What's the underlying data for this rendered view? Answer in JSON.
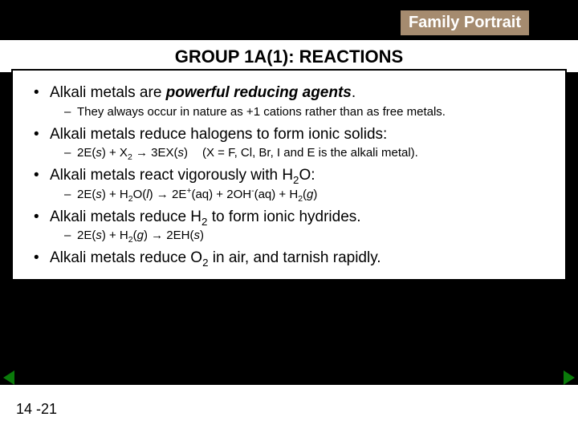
{
  "badge": {
    "text": "Family Portrait",
    "bg": "#a58b6f",
    "fg": "#ffffff"
  },
  "heading": "GROUP 1A(1): REACTIONS",
  "bullets": {
    "b1_pre": "Alkali metals are ",
    "b1_em": "powerful reducing agents",
    "b1_post": ".",
    "s1": "They always occur in nature as +1 cations rather than as free metals.",
    "b2": "Alkali metals reduce halogens to form ionic solids:",
    "s2a": "2E(",
    "s2b": ") + X",
    "s2c": " → 3EX(",
    "s2d": ")",
    "s2note": "(X = F, Cl, Br, I and E is the alkali metal).",
    "b3_pre": "Alkali metals react vigorously with H",
    "b3_post": "O:",
    "s3a": "2E(",
    "s3b": ") + H",
    "s3c": "O(",
    "s3d": ") → 2E",
    "s3e": "(aq) + 2OH",
    "s3f": "(aq) + H",
    "s3g": "(",
    "s3h": ")",
    "b4_pre": "Alkali metals reduce H",
    "b4_post": " to form ionic hydrides.",
    "s4a": "2E(",
    "s4b": ") + H",
    "s4c": "(",
    "s4d": ") → 2EH(",
    "s4e": ")",
    "b5_pre": "Alkali metals reduce O",
    "b5_post": " in air, and tarnish rapidly."
  },
  "states": {
    "s": "s",
    "l": "l",
    "g": "g"
  },
  "subs": {
    "two": "2"
  },
  "sups": {
    "plus": "+",
    "minus": "-"
  },
  "pageNumber": "14 -21",
  "colors": {
    "pageBg": "#000000",
    "boxBg": "#ffffff",
    "boxBorder": "#000000",
    "arrow": "#0a7a0a"
  }
}
